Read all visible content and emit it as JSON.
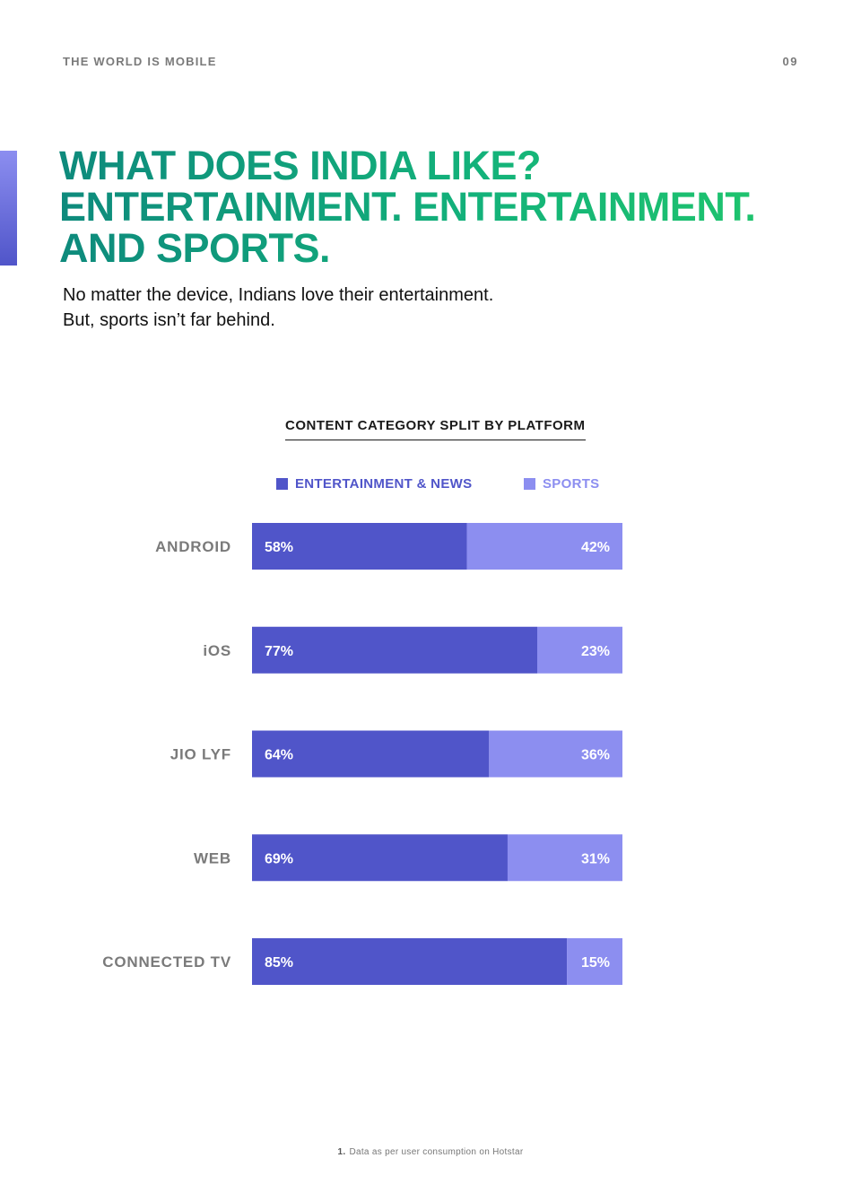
{
  "header": {
    "running_title": "THE WORLD IS MOBILE",
    "page_number": "09"
  },
  "headline": {
    "line1": "WHAT DOES INDIA LIKE?",
    "line2": "ENTERTAINMENT. ENTERTAINMENT.",
    "line3": "AND SPORTS."
  },
  "subtitle": {
    "line1": "No matter the device, Indians love their entertainment.",
    "line2": "But, sports isn’t far behind."
  },
  "colors": {
    "entertainment": "#5055c9",
    "sports": "#8c8ef0",
    "category_label": "#7a7a7a",
    "headline_start": "#0e8a7c",
    "headline_end": "#1ec36e"
  },
  "chart_data": {
    "type": "bar",
    "orientation": "horizontal",
    "stacked": true,
    "title": "CONTENT CATEGORY SPLIT BY PLATFORM",
    "categories": [
      "ANDROID",
      "iOS",
      "JIO LYF",
      "WEB",
      "CONNECTED TV"
    ],
    "series": [
      {
        "name": "ENTERTAINMENT & NEWS",
        "values": [
          58,
          77,
          64,
          69,
          85
        ],
        "color": "#5055c9"
      },
      {
        "name": "SPORTS",
        "values": [
          42,
          23,
          36,
          31,
          15
        ],
        "color": "#8c8ef0"
      }
    ],
    "value_suffix": "%",
    "xlim": [
      0,
      100
    ],
    "grid": false,
    "legend_position": "top"
  },
  "footnote": {
    "number": "1.",
    "text": "Data as per user consumption on Hotstar"
  }
}
